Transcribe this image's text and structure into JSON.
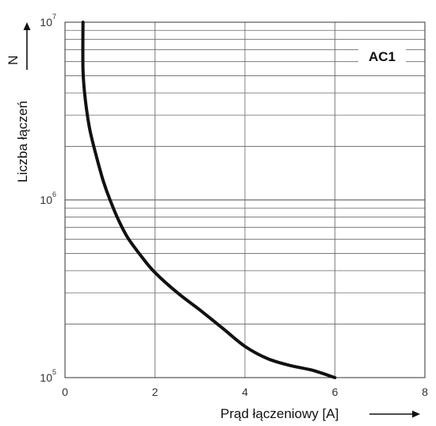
{
  "chart_data": {
    "type": "line",
    "xlabel": "Prąd łączeniowy [A]",
    "ylabel": "Liczba łączeń",
    "ylabel_symbol": "N",
    "xlim": [
      0,
      8
    ],
    "ylim": [
      100000,
      10000000
    ],
    "yscale": "log",
    "grid": true,
    "x_ticks": [
      "0",
      "2",
      "4",
      "6",
      "8"
    ],
    "y_ticks": [
      {
        "base": "10",
        "exp": "5"
      },
      {
        "base": "10",
        "exp": "6"
      },
      {
        "base": "10",
        "exp": "7"
      }
    ],
    "legend": "top-right",
    "series": [
      {
        "name": "AC1",
        "color": "#111111",
        "x": [
          0.4,
          0.4,
          0.45,
          0.55,
          0.7,
          0.85,
          1.0,
          1.2,
          1.4,
          1.7,
          2.0,
          2.5,
          3.0,
          3.5,
          4.0,
          4.5,
          5.0,
          5.5,
          6.0
        ],
        "y": [
          10000000,
          5400000,
          3700000,
          2500000,
          1750000,
          1280000,
          1000000,
          760000,
          610000,
          480000,
          390000,
          300000,
          240000,
          190000,
          150000,
          128000,
          117000,
          110000,
          100000
        ]
      }
    ]
  }
}
